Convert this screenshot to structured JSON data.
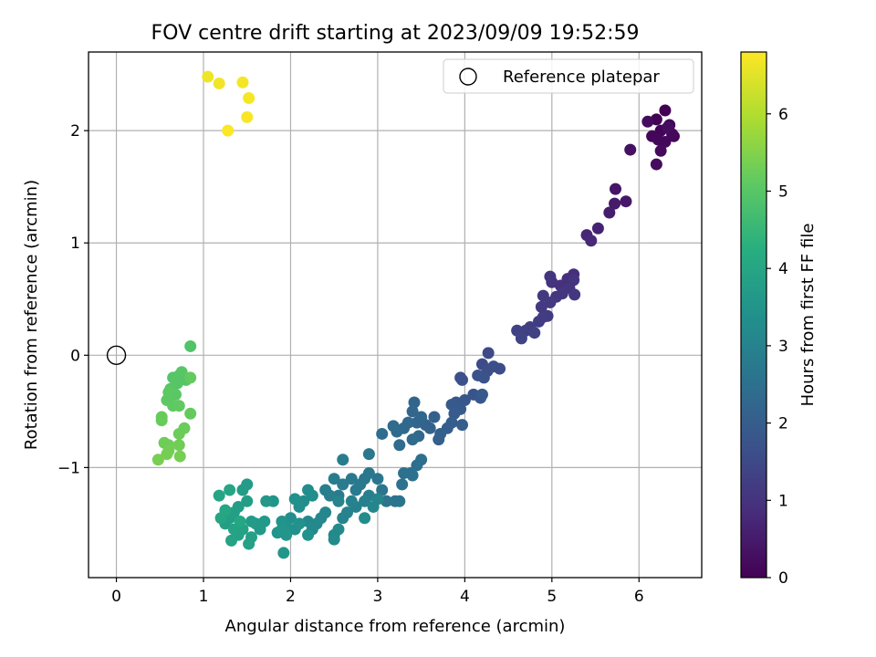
{
  "chart_data": {
    "type": "scatter",
    "title": "FOV centre drift starting at 2023/09/09 19:52:59",
    "xlabel": "Angular distance from reference (arcmin)",
    "ylabel": "Rotation from reference (arcmin)",
    "xlim": [
      -0.32,
      6.72
    ],
    "ylim": [
      -1.98,
      2.7
    ],
    "xticks": [
      0,
      1,
      2,
      3,
      4,
      5,
      6
    ],
    "yticks": [
      -1,
      0,
      1,
      2
    ],
    "xtick_labels": [
      "0",
      "1",
      "2",
      "3",
      "4",
      "5",
      "6"
    ],
    "ytick_labels": [
      "−1",
      "0",
      "1",
      "2"
    ],
    "grid": true,
    "legend": {
      "placement": "top-right",
      "entries": [
        "Reference platepar"
      ]
    },
    "reference_point": {
      "name": "Reference platepar",
      "x": 0,
      "y": 0,
      "marker": "open-circle"
    },
    "colorbar": {
      "label": "Hours from first FF file",
      "colormap": "viridis",
      "range": [
        0,
        6.8
      ],
      "ticks": [
        0,
        1,
        2,
        3,
        4,
        5,
        6
      ],
      "tick_labels": [
        "0",
        "1",
        "2",
        "3",
        "4",
        "5",
        "6"
      ]
    },
    "points": [
      [
        6.3,
        2.18,
        0.0
      ],
      [
        6.2,
        2.1,
        0.02
      ],
      [
        6.35,
        2.05,
        0.04
      ],
      [
        6.25,
        2.0,
        0.06
      ],
      [
        6.4,
        1.95,
        0.08
      ],
      [
        6.15,
        1.95,
        0.1
      ],
      [
        6.3,
        1.9,
        0.12
      ],
      [
        6.22,
        1.92,
        0.14
      ],
      [
        6.38,
        1.97,
        0.16
      ],
      [
        6.25,
        1.82,
        0.18
      ],
      [
        6.2,
        1.7,
        0.2
      ],
      [
        6.1,
        2.08,
        0.22
      ],
      [
        6.33,
        2.03,
        0.24
      ],
      [
        5.9,
        1.83,
        0.3
      ],
      [
        5.73,
        1.48,
        0.4
      ],
      [
        5.85,
        1.37,
        0.45
      ],
      [
        5.72,
        1.35,
        0.5
      ],
      [
        5.66,
        1.27,
        0.55
      ],
      [
        5.53,
        1.13,
        0.65
      ],
      [
        5.4,
        1.07,
        0.72
      ],
      [
        5.45,
        1.02,
        0.78
      ],
      [
        5.25,
        0.72,
        0.9
      ],
      [
        5.18,
        0.68,
        0.92
      ],
      [
        5.1,
        0.62,
        0.95
      ],
      [
        5.0,
        0.65,
        0.98
      ],
      [
        5.25,
        0.67,
        1.0
      ],
      [
        5.2,
        0.6,
        1.02
      ],
      [
        4.98,
        0.7,
        1.04
      ],
      [
        5.12,
        0.55,
        1.06
      ],
      [
        5.05,
        0.52,
        1.08
      ],
      [
        5.26,
        0.54,
        1.1
      ],
      [
        4.9,
        0.53,
        1.12
      ],
      [
        4.98,
        0.47,
        1.14
      ],
      [
        4.88,
        0.43,
        1.16
      ],
      [
        4.95,
        0.35,
        1.18
      ],
      [
        4.85,
        0.3,
        1.2
      ],
      [
        4.9,
        0.34,
        1.22
      ],
      [
        4.75,
        0.25,
        1.25
      ],
      [
        4.7,
        0.22,
        1.28
      ],
      [
        4.8,
        0.2,
        1.3
      ],
      [
        4.6,
        0.22,
        1.34
      ],
      [
        4.65,
        0.15,
        1.38
      ],
      [
        4.27,
        0.02,
        1.5
      ],
      [
        4.2,
        -0.08,
        1.55
      ],
      [
        4.4,
        -0.12,
        1.58
      ],
      [
        4.33,
        -0.1,
        1.6
      ],
      [
        4.26,
        -0.14,
        1.62
      ],
      [
        3.95,
        -0.2,
        1.66
      ],
      [
        3.97,
        -0.22,
        1.68
      ],
      [
        4.15,
        -0.18,
        1.7
      ],
      [
        4.22,
        -0.2,
        1.72
      ],
      [
        4.1,
        -0.35,
        1.76
      ],
      [
        4.0,
        -0.4,
        1.8
      ],
      [
        4.18,
        -0.38,
        1.82
      ],
      [
        3.9,
        -0.42,
        1.85
      ],
      [
        4.2,
        -0.35,
        1.88
      ],
      [
        3.95,
        -0.48,
        1.9
      ],
      [
        3.85,
        -0.44,
        1.92
      ],
      [
        3.88,
        -0.52,
        1.95
      ],
      [
        3.97,
        -0.62,
        1.98
      ],
      [
        3.85,
        -0.6,
        2.0
      ],
      [
        3.8,
        -0.65,
        2.02
      ],
      [
        3.7,
        -0.75,
        2.05
      ],
      [
        3.72,
        -0.7,
        2.08
      ],
      [
        3.65,
        -0.55,
        2.1
      ],
      [
        3.6,
        -0.65,
        2.12
      ],
      [
        3.55,
        -0.62,
        2.15
      ],
      [
        3.45,
        -0.6,
        2.18
      ],
      [
        3.42,
        -0.42,
        2.2
      ],
      [
        3.4,
        -0.5,
        2.22
      ],
      [
        3.5,
        -0.55,
        2.25
      ],
      [
        3.35,
        -0.6,
        2.28
      ],
      [
        3.3,
        -0.65,
        2.3
      ],
      [
        3.47,
        -0.72,
        2.32
      ],
      [
        3.4,
        -0.75,
        2.34
      ],
      [
        3.22,
        -0.68,
        2.36
      ],
      [
        3.25,
        -0.8,
        2.38
      ],
      [
        3.18,
        -0.63,
        2.4
      ],
      [
        3.05,
        -0.7,
        2.42
      ],
      [
        3.5,
        -0.93,
        2.45
      ],
      [
        3.45,
        -0.98,
        2.48
      ],
      [
        3.38,
        -1.05,
        2.5
      ],
      [
        3.3,
        -1.05,
        2.52
      ],
      [
        3.4,
        -1.07,
        2.54
      ],
      [
        3.28,
        -1.15,
        2.56
      ],
      [
        3.2,
        -1.3,
        2.58
      ],
      [
        3.25,
        -1.3,
        2.6
      ],
      [
        3.1,
        -1.3,
        2.62
      ],
      [
        3.05,
        -1.2,
        2.64
      ],
      [
        3.0,
        -1.1,
        2.66
      ],
      [
        2.9,
        -1.05,
        2.68
      ],
      [
        2.9,
        -0.88,
        2.7
      ],
      [
        2.85,
        -1.1,
        2.72
      ],
      [
        2.8,
        -1.15,
        2.74
      ],
      [
        2.75,
        -1.2,
        2.76
      ],
      [
        2.7,
        -1.1,
        2.78
      ],
      [
        2.6,
        -1.15,
        2.8
      ],
      [
        2.55,
        -1.25,
        2.82
      ],
      [
        2.6,
        -0.93,
        2.84
      ],
      [
        2.5,
        -1.1,
        2.86
      ],
      [
        2.45,
        -1.25,
        2.88
      ],
      [
        2.4,
        -1.2,
        2.9
      ],
      [
        2.9,
        -1.25,
        2.92
      ],
      [
        2.85,
        -1.3,
        2.94
      ],
      [
        2.75,
        -1.35,
        2.96
      ],
      [
        2.7,
        -1.3,
        2.98
      ],
      [
        2.65,
        -1.4,
        3.0
      ],
      [
        2.6,
        -1.45,
        3.02
      ],
      [
        2.55,
        -1.3,
        3.04
      ],
      [
        2.95,
        -1.35,
        3.06
      ],
      [
        3.0,
        -1.28,
        3.08
      ],
      [
        2.4,
        -1.4,
        3.1
      ],
      [
        2.35,
        -1.45,
        3.12
      ],
      [
        2.3,
        -1.5,
        3.14
      ],
      [
        2.25,
        -1.55,
        3.16
      ],
      [
        2.2,
        -1.48,
        3.18
      ],
      [
        2.55,
        -1.55,
        3.2
      ],
      [
        2.5,
        -1.6,
        3.22
      ],
      [
        2.5,
        -1.64,
        3.24
      ],
      [
        2.85,
        -1.45,
        3.26
      ],
      [
        2.2,
        -1.2,
        3.28
      ],
      [
        2.15,
        -1.3,
        3.3
      ],
      [
        2.25,
        -1.25,
        3.32
      ],
      [
        2.1,
        -1.35,
        3.34
      ],
      [
        2.05,
        -1.28,
        3.36
      ],
      [
        2.0,
        -1.45,
        3.38
      ],
      [
        2.05,
        -1.55,
        3.4
      ],
      [
        2.1,
        -1.5,
        3.42
      ],
      [
        2.2,
        -1.6,
        3.44
      ],
      [
        1.95,
        -1.52,
        3.46
      ],
      [
        1.9,
        -1.48,
        3.48
      ],
      [
        1.85,
        -1.58,
        3.5
      ],
      [
        1.8,
        -1.3,
        3.52
      ],
      [
        1.9,
        -1.55,
        3.54
      ],
      [
        1.95,
        -1.6,
        3.56
      ],
      [
        1.92,
        -1.76,
        3.58
      ],
      [
        1.72,
        -1.3,
        3.6
      ],
      [
        1.7,
        -1.48,
        3.62
      ],
      [
        1.65,
        -1.55,
        3.64
      ],
      [
        1.6,
        -1.5,
        3.66
      ],
      [
        1.55,
        -1.48,
        3.68
      ],
      [
        1.5,
        -1.15,
        3.7
      ],
      [
        1.45,
        -1.2,
        3.72
      ],
      [
        1.5,
        -1.3,
        3.74
      ],
      [
        1.4,
        -1.35,
        3.76
      ],
      [
        1.35,
        -1.4,
        3.78
      ],
      [
        1.3,
        -1.45,
        3.8
      ],
      [
        1.25,
        -1.5,
        3.82
      ],
      [
        1.55,
        -1.62,
        3.84
      ],
      [
        1.52,
        -1.68,
        3.86
      ],
      [
        1.45,
        -1.55,
        3.88
      ],
      [
        1.4,
        -1.6,
        3.9
      ],
      [
        1.35,
        -1.55,
        3.92
      ],
      [
        1.32,
        -1.65,
        3.94
      ],
      [
        1.2,
        -1.45,
        3.96
      ],
      [
        1.18,
        -1.25,
        3.98
      ],
      [
        1.3,
        -1.2,
        4.0
      ],
      [
        1.25,
        -1.38,
        4.02
      ],
      [
        1.42,
        -1.48,
        4.04
      ],
      [
        0.85,
        0.08,
        4.9
      ],
      [
        0.72,
        -0.18,
        4.92
      ],
      [
        0.8,
        -0.22,
        4.94
      ],
      [
        0.65,
        -0.2,
        4.96
      ],
      [
        0.7,
        -0.25,
        4.98
      ],
      [
        0.75,
        -0.15,
        5.0
      ],
      [
        0.62,
        -0.3,
        5.02
      ],
      [
        0.68,
        -0.35,
        5.04
      ],
      [
        0.6,
        -0.33,
        5.06
      ],
      [
        0.58,
        -0.4,
        5.08
      ],
      [
        0.65,
        -0.45,
        5.1
      ],
      [
        0.72,
        -0.45,
        5.12
      ],
      [
        0.85,
        -0.2,
        5.14
      ],
      [
        0.85,
        -0.52,
        5.16
      ],
      [
        0.52,
        -0.55,
        5.18
      ],
      [
        0.52,
        -0.58,
        5.2
      ],
      [
        0.78,
        -0.65,
        5.22
      ],
      [
        0.72,
        -0.7,
        5.24
      ],
      [
        0.55,
        -0.78,
        5.26
      ],
      [
        0.6,
        -0.8,
        5.28
      ],
      [
        0.72,
        -0.8,
        5.3
      ],
      [
        0.6,
        -0.85,
        5.32
      ],
      [
        0.58,
        -0.88,
        5.34
      ],
      [
        0.73,
        -0.9,
        5.36
      ],
      [
        0.48,
        -0.93,
        5.38
      ],
      [
        1.05,
        2.48,
        6.65
      ],
      [
        1.18,
        2.42,
        6.68
      ],
      [
        1.45,
        2.43,
        6.7
      ],
      [
        1.52,
        2.29,
        6.72
      ],
      [
        1.5,
        2.12,
        6.75
      ],
      [
        1.28,
        2.0,
        6.78
      ]
    ]
  }
}
